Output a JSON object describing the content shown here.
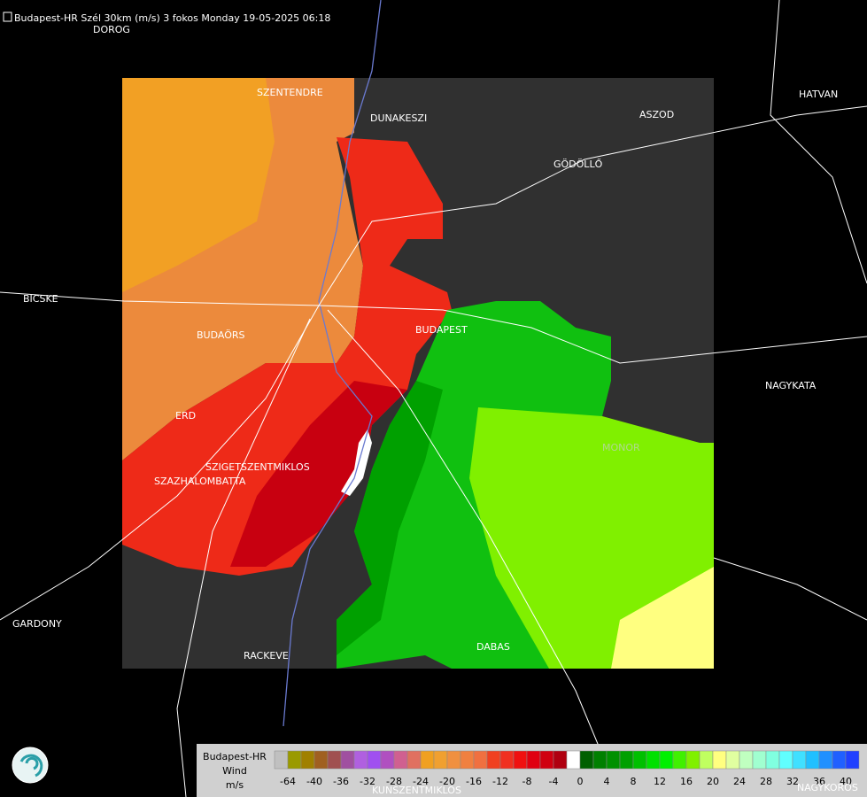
{
  "header": {
    "title": "Budapest-HR Szél 30km (m/s) 3 fokos Monday 19-05-2025 06:18"
  },
  "places": [
    {
      "label": "DOROG"
    },
    {
      "label": "SZENTENDRE"
    },
    {
      "label": "DUNAKESZI"
    },
    {
      "label": "ASZOD"
    },
    {
      "label": "HATVAN"
    },
    {
      "label": "GÖDÖLLŐ"
    },
    {
      "label": "BICSKE"
    },
    {
      "label": "BUDAÖRS"
    },
    {
      "label": "BUDAPEST"
    },
    {
      "label": "NAGYKATA"
    },
    {
      "label": "ERD"
    },
    {
      "label": "MONOR"
    },
    {
      "label": "SZIGETSZENTMIKLOS"
    },
    {
      "label": "SZAZHALOMBATTA"
    },
    {
      "label": "GARDONY"
    },
    {
      "label": "RACKEVE"
    },
    {
      "label": "DABAS"
    },
    {
      "label": "KUNSZENTMIKLOS"
    },
    {
      "label": "NAGYKOROS"
    }
  ],
  "legend": {
    "title": "Budapest-HR",
    "subtitle": "Wind",
    "unit": "m/s",
    "colors": [
      "#c0c0c0",
      "#9a9a00",
      "#a08000",
      "#a06020",
      "#a05050",
      "#a050a0",
      "#b060e0",
      "#a050f0",
      "#b050c0",
      "#d06090",
      "#e07060",
      "#f0a020",
      "#f0a030",
      "#f09040",
      "#f08040",
      "#f07040",
      "#f04020",
      "#f03020",
      "#f01010",
      "#e00010",
      "#d00010",
      "#b00010",
      "#ffffff",
      "#006000",
      "#008000",
      "#009000",
      "#00a000",
      "#00c000",
      "#00e000",
      "#00f000",
      "#40f000",
      "#80f000",
      "#c0ff60",
      "#ffff80",
      "#e0ffa0",
      "#c0ffc0",
      "#a0ffd0",
      "#80ffe0",
      "#60ffff",
      "#40e0ff",
      "#20c0ff",
      "#2090ff",
      "#2060ff",
      "#2040ff"
    ],
    "ticks": [
      -64,
      -40,
      -36,
      -32,
      -28,
      -24,
      -20,
      -16,
      -12,
      -8,
      -4,
      0,
      4,
      8,
      12,
      16,
      20,
      24,
      28,
      32,
      36,
      40
    ]
  }
}
